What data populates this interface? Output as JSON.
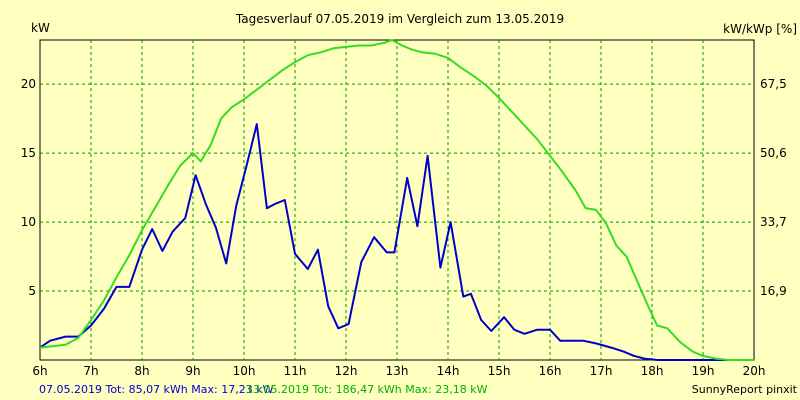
{
  "chart_data": {
    "type": "line",
    "title": "Tagesverlauf 07.05.2019 im Vergleich zum 13.05.2019",
    "ylabel_left": "kW",
    "ylabel_right": "kW/kWp [%]",
    "xlim": [
      6,
      20
    ],
    "ylim": [
      0,
      23.2
    ],
    "x_ticks": [
      {
        "value": 6,
        "label": "6h"
      },
      {
        "value": 7,
        "label": "7h"
      },
      {
        "value": 8,
        "label": "8h"
      },
      {
        "value": 9,
        "label": "9h"
      },
      {
        "value": 10,
        "label": "10h"
      },
      {
        "value": 11,
        "label": "11h"
      },
      {
        "value": 12,
        "label": "12h"
      },
      {
        "value": 13,
        "label": "13h"
      },
      {
        "value": 14,
        "label": "14h"
      },
      {
        "value": 15,
        "label": "15h"
      },
      {
        "value": 16,
        "label": "16h"
      },
      {
        "value": 17,
        "label": "17h"
      },
      {
        "value": 18,
        "label": "18h"
      },
      {
        "value": 19,
        "label": "19h"
      },
      {
        "value": 20,
        "label": "20h"
      }
    ],
    "y_ticks_left": [
      {
        "value": 5,
        "label": "5"
      },
      {
        "value": 10,
        "label": "10"
      },
      {
        "value": 15,
        "label": "15"
      },
      {
        "value": 20,
        "label": "20"
      }
    ],
    "y_ticks_right": [
      {
        "value": 5,
        "label": "16,9"
      },
      {
        "value": 10,
        "label": "33,7"
      },
      {
        "value": 15,
        "label": "50,6"
      },
      {
        "value": 20,
        "label": "67,5"
      }
    ],
    "grid": true,
    "series": [
      {
        "color": "#0000cc",
        "x": [
          6,
          6.2,
          6.5,
          6.75,
          7,
          7.25,
          7.5,
          7.75,
          8,
          8.2,
          8.4,
          8.6,
          8.85,
          9.05,
          9.25,
          9.45,
          9.65,
          9.85,
          10.05,
          10.25,
          10.45,
          10.6,
          10.8,
          11,
          11.25,
          11.45,
          11.65,
          11.85,
          12.05,
          12.3,
          12.55,
          12.8,
          12.95,
          13.2,
          13.4,
          13.6,
          13.85,
          14.05,
          14.3,
          14.45,
          14.65,
          14.85,
          15.1,
          15.3,
          15.5,
          15.75,
          16,
          16.2,
          16.4,
          16.65,
          16.9,
          17.2,
          17.45,
          17.65,
          17.85,
          18.1,
          18.35,
          18.6,
          18.85,
          19.1,
          19.35,
          19.6,
          19.8,
          20
        ],
        "values": [
          0.9,
          1.4,
          1.7,
          1.7,
          2.5,
          3.7,
          5.3,
          5.3,
          8.0,
          9.5,
          7.9,
          9.3,
          10.3,
          13.4,
          11.3,
          9.6,
          7.0,
          11.2,
          14.1,
          17.1,
          11.0,
          11.3,
          11.6,
          7.7,
          6.6,
          8.0,
          3.9,
          2.3,
          2.6,
          7.1,
          8.9,
          7.8,
          7.8,
          13.2,
          9.7,
          14.8,
          6.7,
          10.0,
          4.6,
          4.8,
          2.9,
          2.1,
          3.1,
          2.2,
          1.9,
          2.2,
          2.2,
          1.4,
          1.4,
          1.4,
          1.2,
          0.9,
          0.6,
          0.3,
          0.1,
          0,
          0,
          0,
          0,
          0,
          0,
          0,
          0,
          0
        ]
      },
      {
        "color": "#33dd22",
        "x": [
          6,
          6.5,
          6.75,
          7,
          7.25,
          7.5,
          7.75,
          8,
          8.25,
          8.5,
          8.75,
          9,
          9.15,
          9.35,
          9.55,
          9.75,
          10,
          10.25,
          10.5,
          10.75,
          11,
          11.25,
          11.5,
          11.75,
          12,
          12.25,
          12.5,
          12.75,
          12.9,
          13.1,
          13.3,
          13.5,
          13.75,
          14,
          14.25,
          14.5,
          14.75,
          15,
          15.25,
          15.5,
          15.75,
          16,
          16.25,
          16.5,
          16.7,
          16.9,
          17.1,
          17.3,
          17.5,
          17.7,
          17.9,
          18.1,
          18.3,
          18.55,
          18.8,
          19,
          19.25,
          19.5,
          19.75,
          20
        ],
        "values": [
          0.9,
          1.1,
          1.6,
          2.9,
          4.3,
          6.0,
          7.6,
          9.4,
          11.0,
          12.6,
          14.1,
          15.0,
          14.4,
          15.6,
          17.5,
          18.3,
          18.9,
          19.6,
          20.3,
          21.0,
          21.6,
          22.1,
          22.3,
          22.6,
          22.7,
          22.8,
          22.8,
          23.0,
          23.2,
          22.8,
          22.5,
          22.3,
          22.2,
          21.9,
          21.2,
          20.6,
          19.9,
          19.0,
          18.0,
          17.0,
          16.0,
          14.8,
          13.6,
          12.3,
          11.0,
          10.9,
          9.9,
          8.3,
          7.5,
          5.8,
          4.1,
          2.5,
          2.3,
          1.3,
          0.6,
          0.3,
          0.1,
          0,
          0,
          0
        ]
      }
    ]
  },
  "footer": {
    "left_stats": "07.05.2019 Tot: 85,07 kWh Max: 17,23 kW",
    "right_stats": "13.05.2019 Tot: 186,47 kWh Max: 23,18 kW",
    "credit": "SunnyReport pinxit"
  }
}
